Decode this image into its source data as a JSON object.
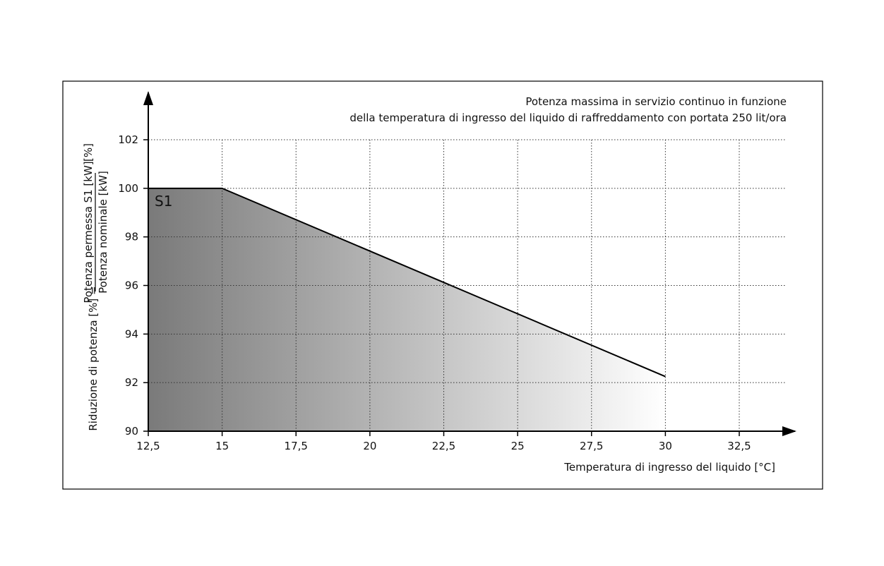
{
  "chart_data": {
    "type": "area",
    "title_lines": [
      "Potenza massima in servizio continuo in funzione",
      "della temperatura di ingresso del liquido di raffreddamento con portata 250 lit/ora"
    ],
    "xlabel": "Temperatura di ingresso del liquido [°C]",
    "ylabel": {
      "prefix": "Riduzione di potenza [%] =",
      "numerator": "Potenza permessa S1 [kW]",
      "denominator": "Potenza nominale [kW]",
      "suffix": "[%]"
    },
    "xlim": [
      12.5,
      34.5
    ],
    "ylim": [
      90,
      103.8
    ],
    "x_ticks": [
      12.5,
      15,
      17.5,
      20,
      22.5,
      25,
      27.5,
      30,
      32.5
    ],
    "x_tick_labels": [
      "12,5",
      "15",
      "17,5",
      "20",
      "22,5",
      "25",
      "27,5",
      "30",
      "32,5"
    ],
    "y_ticks": [
      90,
      92,
      94,
      96,
      98,
      100,
      102
    ],
    "y_tick_labels": [
      "90",
      "92",
      "94",
      "96",
      "98",
      "100",
      "102"
    ],
    "grid": true,
    "series": [
      {
        "name": "S1",
        "x": [
          12.5,
          15,
          30
        ],
        "y": [
          100,
          100,
          92.25
        ]
      }
    ],
    "colors": {
      "fill_dark": "#7a7a7a",
      "fill_light": "#ffffff",
      "line": "#000000"
    }
  }
}
